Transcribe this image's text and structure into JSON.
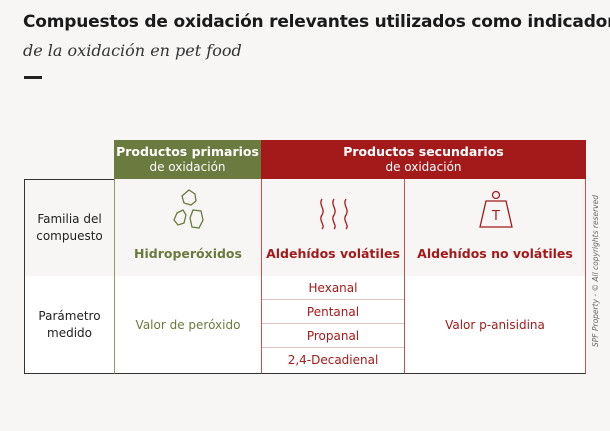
{
  "title": "Compuestos de oxidación relevantes utilizados como indicadores",
  "subtitle": "de la oxidación en pet food",
  "header": {
    "primary": {
      "main": "Productos primarios",
      "sub": "de oxidación"
    },
    "secondary": {
      "main": "Productos secundarios",
      "sub": "de oxidación"
    }
  },
  "row_labels": {
    "family": [
      "Familia del",
      "compuesto"
    ],
    "parameter": [
      "Parámetro",
      "medido"
    ]
  },
  "compounds": {
    "hydroperoxides": {
      "name": "Hidroperóxidos",
      "icon": "droplets-icon"
    },
    "volatile_aldehydes": {
      "name": "Aldehídos volátiles",
      "icon": "vapor-icon"
    },
    "nonvolatile_aldehydes": {
      "name": "Aldehídos no volátiles",
      "icon": "weight-icon",
      "icon_letter": "T"
    }
  },
  "parameters": {
    "hydroperoxides": "Valor de peróxido",
    "volatile_aldehydes": [
      "Hexanal",
      "Pentanal",
      "Propanal",
      "2,4-Decadienal"
    ],
    "nonvolatile_aldehydes": "Valor p-anisidina"
  },
  "copyright": "SPF Property - © All copyrights reserved",
  "colors": {
    "green": "#6b7a3e",
    "red": "#a41a1a",
    "line_red": "#c9504f",
    "line_green": "#8e9a66"
  }
}
